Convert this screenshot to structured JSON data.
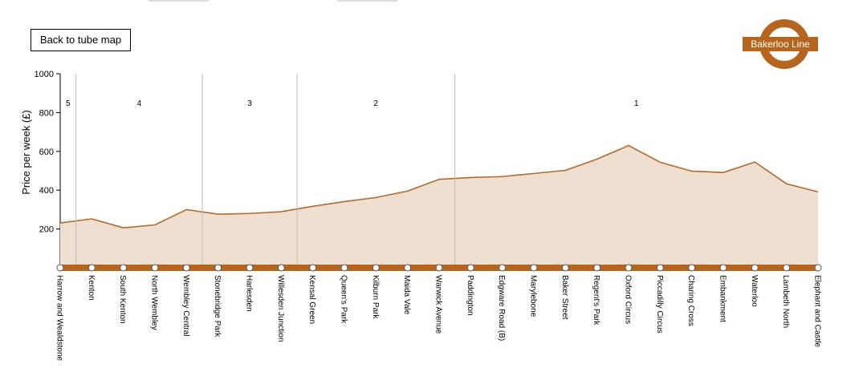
{
  "button": "Back to tube map",
  "chart_data": {
    "type": "area",
    "title": "Bakerloo Line",
    "ylabel": "Price per week (£)",
    "categories": [
      "Harrow and Wealdstone",
      "Kenton",
      "South Kenton",
      "North Wembley",
      "Wembley Central",
      "Stonebridge Park",
      "Harlesden",
      "Willesden Junction",
      "Kensal Green",
      "Queen's Park",
      "Kilburn Park",
      "Maida Vale",
      "Warwick Avenue",
      "Paddington",
      "Edgware Road (B)",
      "Marylebone",
      "Baker Street",
      "Regent's Park",
      "Oxford Circus",
      "Piccadilly Circus",
      "Charing Cross",
      "Embankment",
      "Waterloo",
      "Lambeth North",
      "Elephant and Castle"
    ],
    "zones": [
      "5",
      "4",
      "4",
      "4",
      "4",
      "3",
      "3",
      "3",
      "2",
      "2",
      "2",
      "2",
      "2",
      "1",
      "1",
      "1",
      "1",
      "1",
      "1",
      "1",
      "1",
      "1",
      "1",
      "1",
      "1"
    ],
    "values": [
      231,
      252,
      206,
      221,
      300,
      276,
      280,
      289,
      317,
      341,
      362,
      395,
      456,
      465,
      470,
      486,
      502,
      560,
      630,
      544,
      498,
      491,
      545,
      433,
      391
    ],
    "color": "#b4692b",
    "fill": "#efdfd0",
    "track_color": "#b5651d",
    "ylim": [
      0,
      1000
    ],
    "yticks": [
      200,
      400,
      600,
      800,
      1000
    ]
  }
}
